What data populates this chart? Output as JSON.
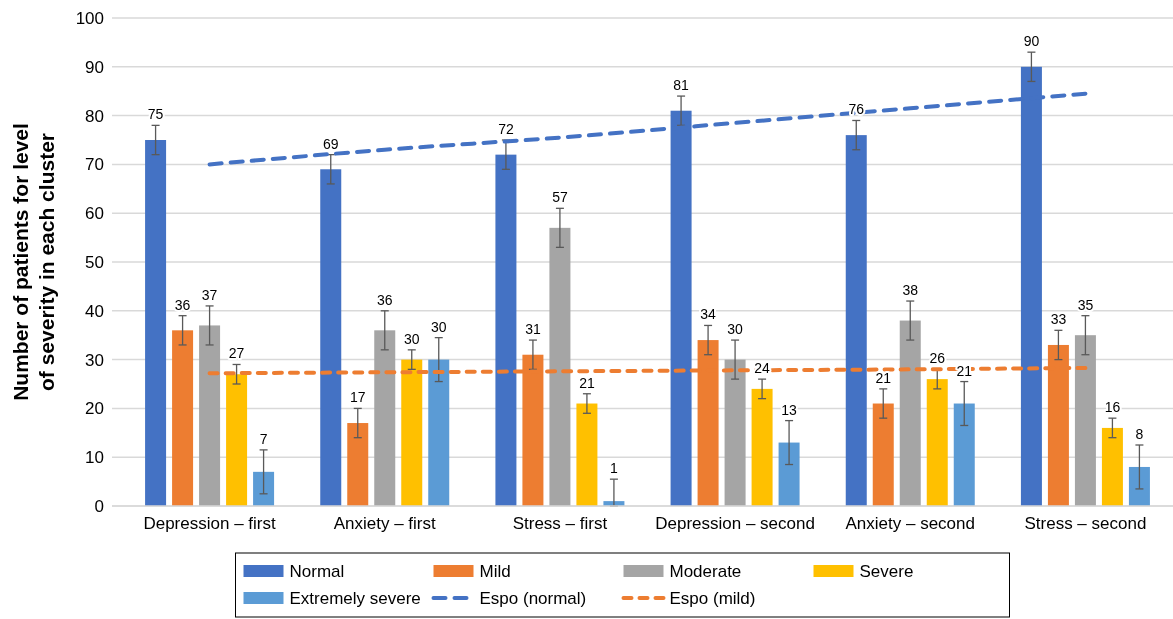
{
  "chart_data": {
    "type": "bar",
    "ylabel": "Number of patients for level of severity in each cluster",
    "categories": [
      "Depression – first",
      "Anxiety – first",
      "Stress – first",
      "Depression – second",
      "Anxiety – second",
      "Stress – second"
    ],
    "ylim": [
      0,
      100
    ],
    "yticks": [
      0,
      10,
      20,
      30,
      40,
      50,
      60,
      70,
      80,
      90,
      100
    ],
    "grid": "y",
    "legend": "bottom",
    "series": [
      {
        "name": "Normal",
        "color": "#4472c4",
        "values": [
          75,
          69,
          72,
          81,
          76,
          90
        ],
        "errors": [
          3,
          3,
          3,
          3,
          3,
          3
        ],
        "value_labels": [
          "75",
          "69",
          "72",
          "81",
          "76",
          "90"
        ]
      },
      {
        "name": "Mild",
        "color": "#ed7d31",
        "values": [
          36,
          17,
          31,
          34,
          21,
          33
        ],
        "errors": [
          3,
          3,
          3,
          3,
          3,
          3
        ],
        "value_labels": [
          "36",
          "17",
          "31",
          "34",
          "21",
          "33"
        ]
      },
      {
        "name": "Moderate",
        "color": "#a5a5a5",
        "values": [
          37,
          36,
          57,
          30,
          38,
          35
        ],
        "errors": [
          4,
          4,
          4,
          4,
          4,
          4
        ],
        "value_labels": [
          "37",
          "36",
          "57",
          "30",
          "38",
          "35"
        ]
      },
      {
        "name": "Severe",
        "color": "#ffc000",
        "values": [
          27,
          30,
          21,
          24,
          26,
          16
        ],
        "errors": [
          2,
          2,
          2,
          2,
          2,
          2
        ],
        "value_labels": [
          "27",
          "30",
          "21",
          "24",
          "26",
          "16"
        ]
      },
      {
        "name": "Extremely severe",
        "color": "#5b9bd5",
        "values": [
          7,
          30,
          1,
          13,
          21,
          8
        ],
        "errors": [
          4.5,
          4.5,
          [
            0,
            5.5
          ],
          4.5,
          4.5,
          4.5
        ],
        "value_labels": [
          "7",
          "30",
          "1",
          "13",
          "21",
          "8"
        ]
      },
      {
        "name": "Espo (normal)",
        "type": "line",
        "line_style": "dashed",
        "color": "#4472c4",
        "values": [
          70,
          73,
          75.5,
          78.5,
          81.5,
          84.5
        ]
      },
      {
        "name": "Espo (mild)",
        "type": "line",
        "line_style": "dashed",
        "color": "#ed7d31",
        "values": [
          27.2,
          27.4,
          27.6,
          27.8,
          28,
          28.3
        ]
      }
    ]
  }
}
